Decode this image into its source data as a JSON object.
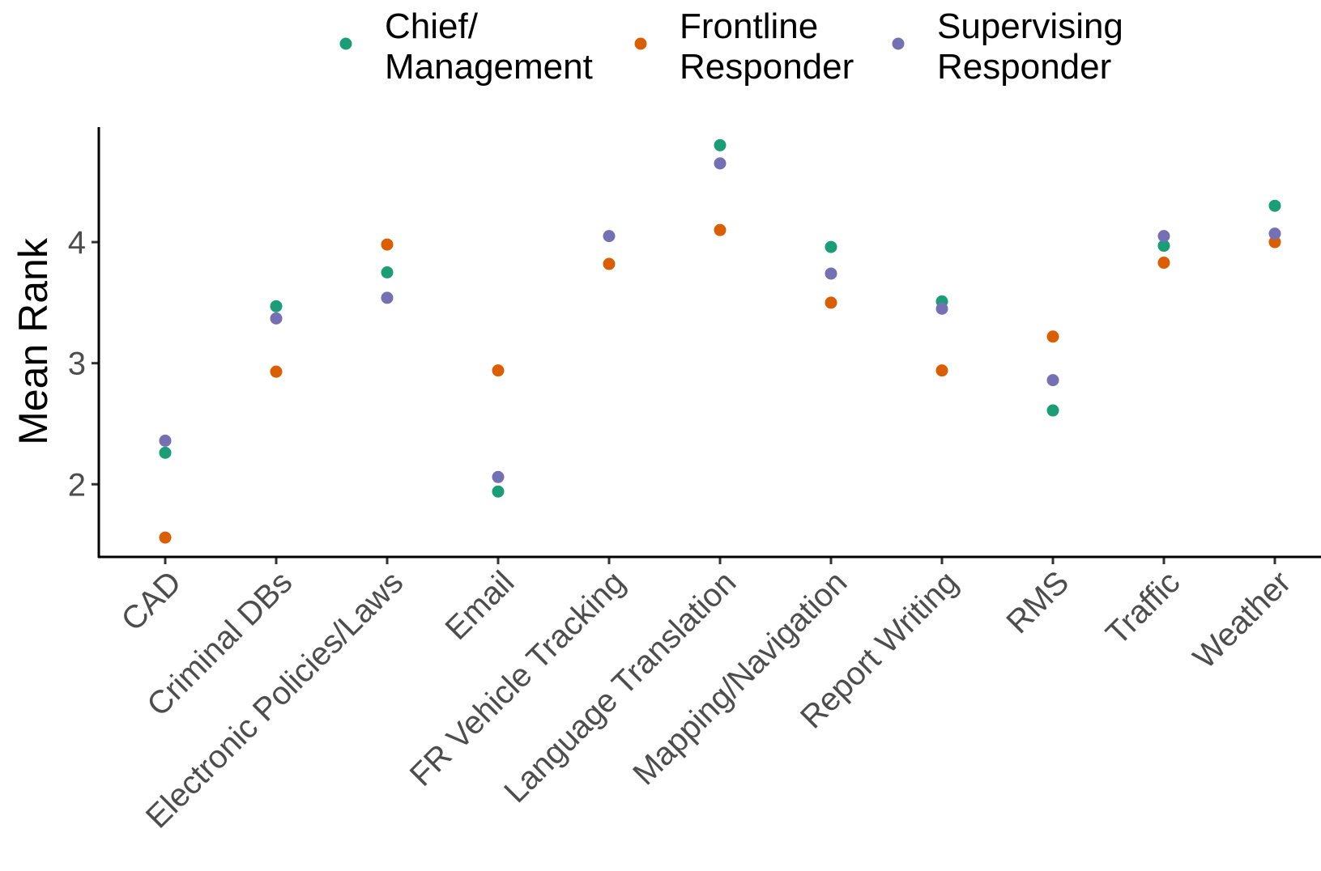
{
  "chart_data": {
    "type": "scatter",
    "ylabel": "Mean Rank",
    "xlabel": "",
    "title": "",
    "ylim": [
      1.4,
      4.95
    ],
    "y_ticks": [
      2,
      3,
      4
    ],
    "legend_position": "top",
    "grid": false,
    "categories": [
      "CAD",
      "Criminal DBs",
      "Electronic Policies/Laws",
      "Email",
      "FR Vehicle Tracking",
      "Language Translation",
      "Mapping/Navigation",
      "Report Writing",
      "RMS",
      "Traffic",
      "Weather"
    ],
    "series": [
      {
        "name": "Chief/\nManagement",
        "color": "#1b9e77",
        "values": [
          2.26,
          3.47,
          3.75,
          1.94,
          null,
          4.8,
          3.96,
          3.51,
          2.61,
          3.97,
          4.3
        ]
      },
      {
        "name": "Frontline\nResponder",
        "color": "#d95f02",
        "values": [
          1.56,
          2.93,
          3.98,
          2.94,
          3.82,
          4.1,
          3.5,
          2.94,
          3.22,
          3.83,
          4.0
        ]
      },
      {
        "name": "Supervising\nResponder",
        "color": "#7570b3",
        "values": [
          2.36,
          3.37,
          3.54,
          2.06,
          4.05,
          4.65,
          3.74,
          3.45,
          2.86,
          4.05,
          4.07
        ]
      }
    ]
  }
}
